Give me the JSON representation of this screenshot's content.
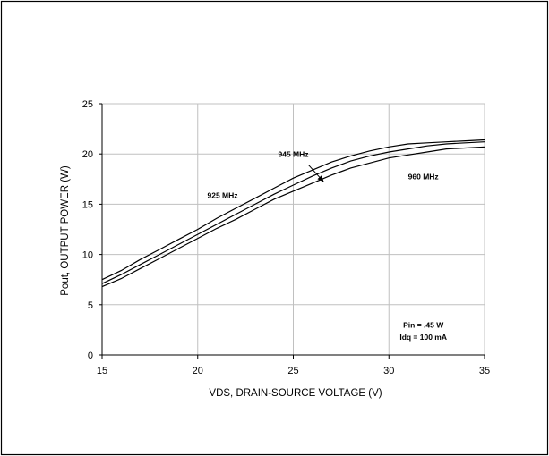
{
  "chart_data": {
    "type": "line",
    "xlabel": "VDS, DRAIN-SOURCE VOLTAGE (V)",
    "ylabel": "Pout, OUTPUT POWER (W)",
    "xlim": [
      15,
      35
    ],
    "ylim": [
      0,
      25
    ],
    "xticks": [
      15,
      20,
      25,
      30,
      35
    ],
    "yticks": [
      0,
      5,
      10,
      15,
      20,
      25
    ],
    "grid": true,
    "x": [
      15,
      16,
      17,
      18,
      19,
      20,
      21,
      22,
      23,
      24,
      25,
      26,
      27,
      28,
      29,
      30,
      31,
      32,
      33,
      34,
      35
    ],
    "series": [
      {
        "name": "925 MHz",
        "values": [
          7.5,
          8.4,
          9.5,
          10.5,
          11.5,
          12.5,
          13.6,
          14.6,
          15.6,
          16.6,
          17.6,
          18.4,
          19.2,
          19.8,
          20.3,
          20.7,
          21.0,
          21.1,
          21.2,
          21.3,
          21.4
        ]
      },
      {
        "name": "945 MHz",
        "values": [
          7.1,
          8.0,
          9.0,
          10.0,
          11.0,
          12.0,
          13.0,
          14.0,
          15.0,
          16.0,
          16.9,
          17.8,
          18.6,
          19.3,
          19.8,
          20.2,
          20.5,
          20.8,
          21.0,
          21.1,
          21.2
        ]
      },
      {
        "name": "960 MHz",
        "values": [
          6.8,
          7.6,
          8.6,
          9.6,
          10.6,
          11.6,
          12.6,
          13.5,
          14.5,
          15.5,
          16.3,
          17.1,
          17.9,
          18.6,
          19.1,
          19.6,
          19.9,
          20.2,
          20.5,
          20.6,
          20.7
        ]
      }
    ],
    "annotations": [
      {
        "text": "925 MHz",
        "x": 21.3,
        "y": 15.6
      },
      {
        "text": "945 MHz",
        "x": 25.0,
        "y": 19.7
      },
      {
        "text": "960 MHz",
        "x": 31.8,
        "y": 17.5
      },
      {
        "text": "Pin = .45 W",
        "x": 31.8,
        "y": 2.7
      },
      {
        "text": "Idq = 100 mA",
        "x": 31.8,
        "y": 1.5
      }
    ],
    "arrow": {
      "from": [
        25.8,
        18.9
      ],
      "to": [
        26.6,
        17.2
      ]
    },
    "line_color": "#000000",
    "grid_color": "#c0c0c0"
  }
}
